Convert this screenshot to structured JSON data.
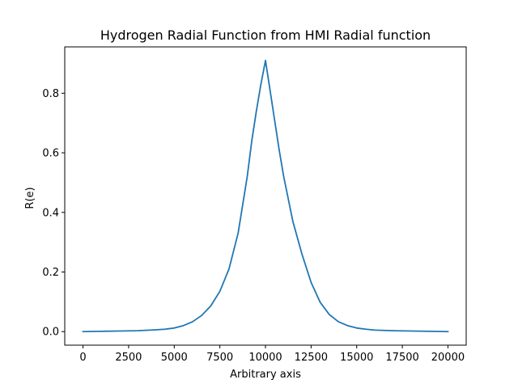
{
  "chart_data": {
    "type": "line",
    "title": "Hydrogen Radial Function from HMI Radial function",
    "xlabel": "Arbitrary axis",
    "ylabel": "R(e)",
    "xlim": [
      -1000,
      21000
    ],
    "ylim": [
      -0.0455,
      0.9555
    ],
    "xticks": [
      0,
      2500,
      5000,
      7500,
      10000,
      12500,
      15000,
      17500,
      20000
    ],
    "xtick_labels": [
      "0",
      "2500",
      "5000",
      "7500",
      "10000",
      "12500",
      "15000",
      "17500",
      "20000"
    ],
    "yticks": [
      0.0,
      0.2,
      0.4,
      0.6,
      0.8
    ],
    "ytick_labels": [
      "0.0",
      "0.2",
      "0.4",
      "0.6",
      "0.8"
    ],
    "grid": false,
    "legend": "none",
    "series": [
      {
        "color": "#1f77b4",
        "x": [
          0,
          1000,
          2000,
          3000,
          4000,
          4500,
          5000,
          5500,
          6000,
          6500,
          7000,
          7500,
          8000,
          8500,
          9000,
          9250,
          9500,
          9750,
          10000,
          10250,
          10500,
          10750,
          11000,
          11500,
          12000,
          12500,
          13000,
          13500,
          14000,
          14500,
          15000,
          15500,
          16000,
          17000,
          18000,
          19000,
          20000
        ],
        "y": [
          0.0,
          0.001,
          0.002,
          0.003,
          0.006,
          0.008,
          0.012,
          0.02,
          0.033,
          0.054,
          0.086,
          0.135,
          0.21,
          0.33,
          0.52,
          0.64,
          0.74,
          0.83,
          0.91,
          0.81,
          0.71,
          0.61,
          0.52,
          0.37,
          0.26,
          0.165,
          0.098,
          0.057,
          0.033,
          0.02,
          0.012,
          0.008,
          0.005,
          0.003,
          0.002,
          0.001,
          0.0
        ]
      }
    ]
  }
}
